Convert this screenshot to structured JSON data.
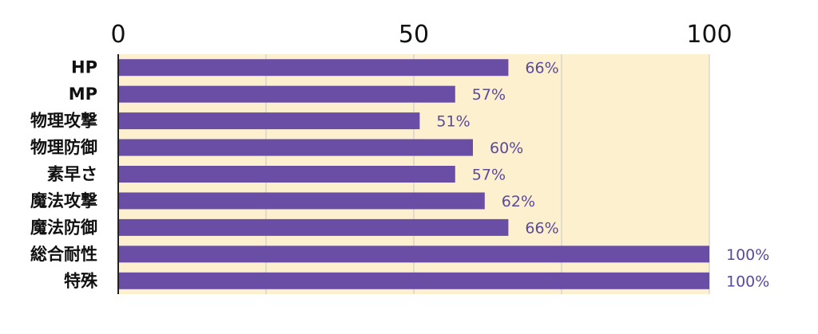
{
  "chart_data": {
    "type": "bar",
    "orientation": "horizontal",
    "categories": [
      "HP",
      "MP",
      "物理攻撃",
      "物理防御",
      "素早さ",
      "魔法攻撃",
      "魔法防御",
      "総合耐性",
      "特殊"
    ],
    "values": [
      66,
      57,
      51,
      60,
      57,
      62,
      66,
      100,
      100
    ],
    "data_labels": [
      "66%",
      "57%",
      "51%",
      "60%",
      "57%",
      "62%",
      "66%",
      "100%",
      "100%"
    ],
    "xlim": [
      0,
      100
    ],
    "x_ticks": [
      "0",
      "50",
      "100"
    ],
    "grid": true,
    "colors": {
      "bar": "#6a4ea6",
      "plot_background": "#fdf0cf",
      "grid": "#c8c8c8",
      "label": "#5a4a9a",
      "axis": "#222222"
    }
  }
}
